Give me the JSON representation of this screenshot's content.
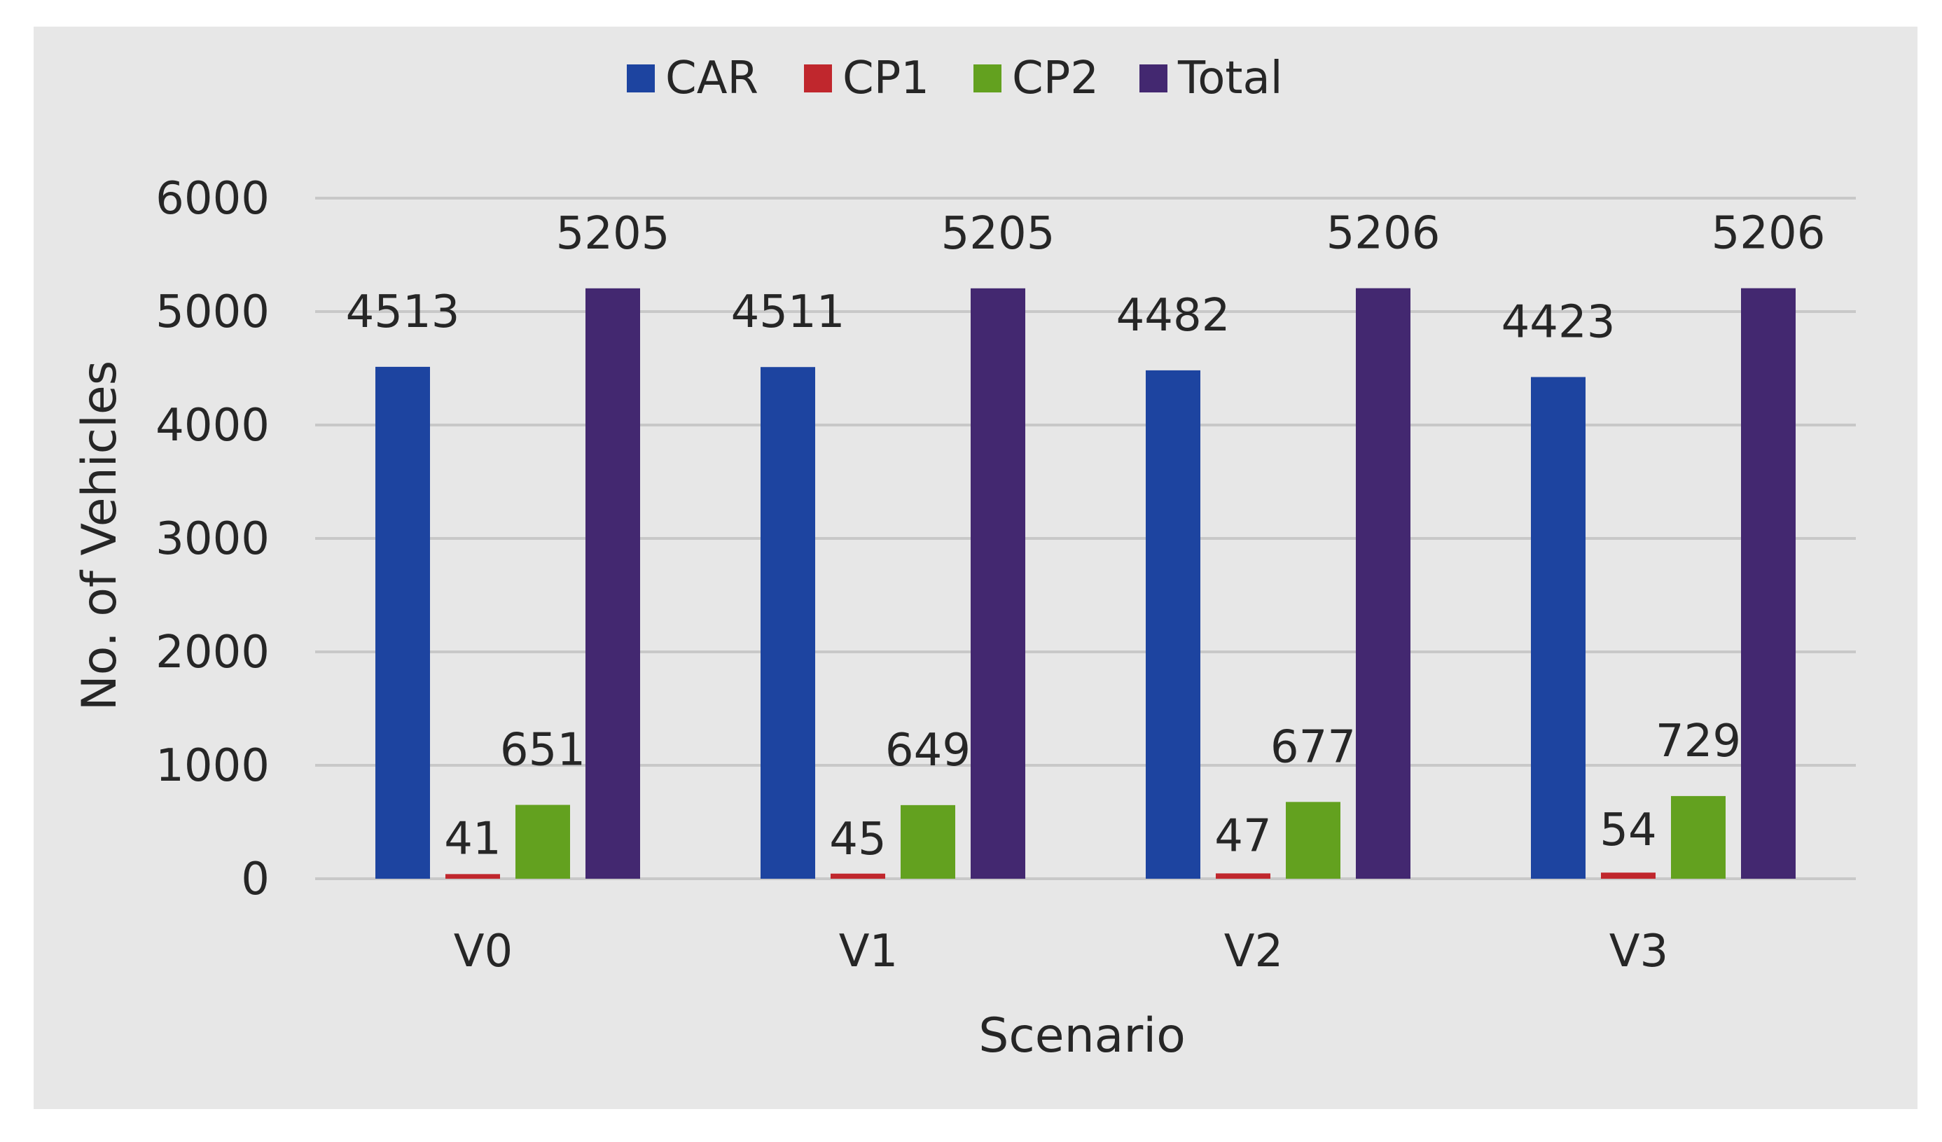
{
  "chart_data": {
    "type": "bar",
    "title": "",
    "xlabel": "Scenario",
    "ylabel": "No. of Vehicles",
    "ylim": [
      0,
      6000
    ],
    "yticks": [
      0,
      1000,
      2000,
      3000,
      4000,
      5000,
      6000
    ],
    "categories": [
      "V0",
      "V1",
      "V2",
      "V3"
    ],
    "series": [
      {
        "name": "CAR",
        "color": "#1d44a0",
        "values": [
          4513,
          4511,
          4482,
          4423
        ]
      },
      {
        "name": "CP1",
        "color": "#c0272d",
        "values": [
          41,
          45,
          47,
          54
        ]
      },
      {
        "name": "CP2",
        "color": "#63a11f",
        "values": [
          651,
          649,
          677,
          729
        ]
      },
      {
        "name": "Total",
        "color": "#432870",
        "values": [
          5205,
          5205,
          5206,
          5206
        ]
      }
    ],
    "data_labels": true,
    "grid": "horizontal",
    "legend_position": "top",
    "background_color": "#e7e7e7",
    "gridline_color": "#c8c8c8"
  }
}
